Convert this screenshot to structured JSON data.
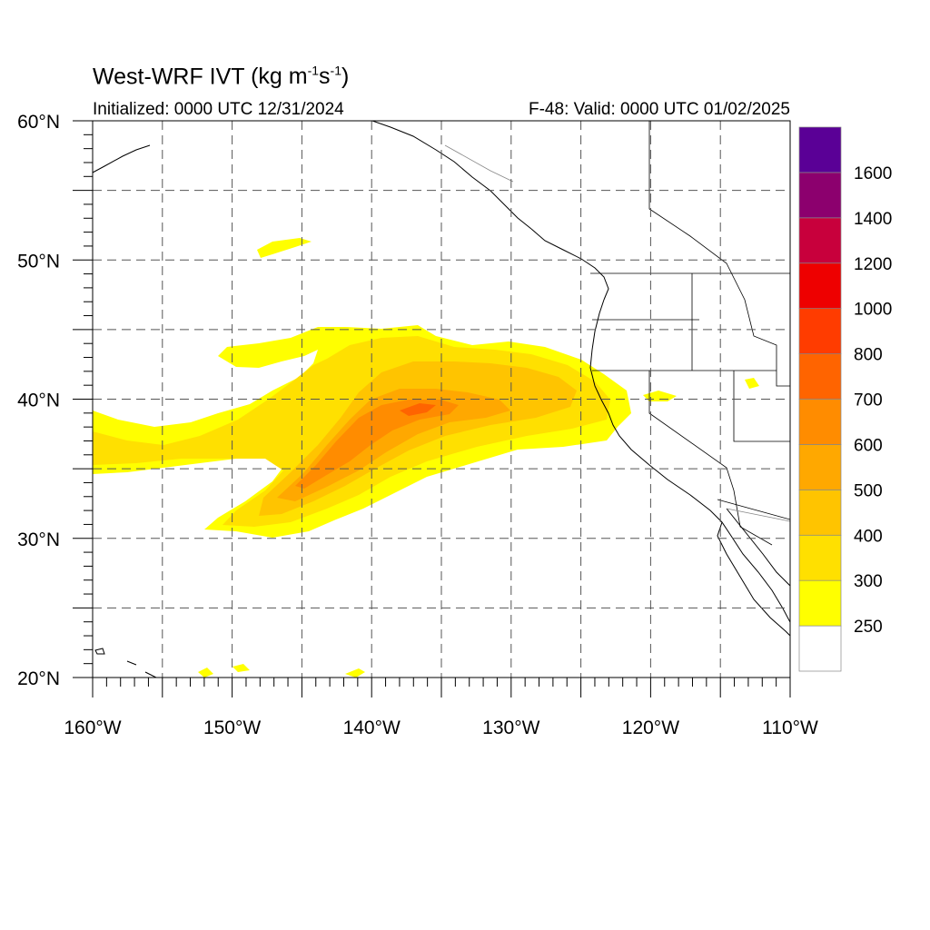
{
  "title": "West-WRF IVT",
  "units": {
    "prefix": "(kg m",
    "exp1": "-1",
    "mid": "s",
    "exp2": "-1",
    "suffix": ")"
  },
  "initialized_label": "Initialized: 0000 UTC 12/31/2024",
  "valid_label": "F-48: Valid: 0000 UTC 01/02/2025",
  "map": {
    "lon_range": [
      -160,
      -110
    ],
    "lat_range": [
      20,
      60
    ],
    "lon_ticks": [
      {
        "value": -160,
        "label": "160°W"
      },
      {
        "value": -150,
        "label": "150°W"
      },
      {
        "value": -140,
        "label": "140°W"
      },
      {
        "value": -130,
        "label": "130°W"
      },
      {
        "value": -120,
        "label": "120°W"
      },
      {
        "value": -110,
        "label": "110°W"
      }
    ],
    "lat_ticks": [
      {
        "value": 60,
        "label": "60°N"
      },
      {
        "value": 50,
        "label": "50°N"
      },
      {
        "value": 40,
        "label": "40°N"
      },
      {
        "value": 30,
        "label": "30°N"
      },
      {
        "value": 20,
        "label": "20°N"
      }
    ],
    "grid_spacing_deg": 5,
    "grid": "dashed"
  },
  "colorbar": {
    "levels": [
      "250",
      "300",
      "400",
      "500",
      "600",
      "700",
      "800",
      "1000",
      "1200",
      "1400",
      "1600"
    ],
    "colors": [
      "#ffffff",
      "#ffff00",
      "#ffe000",
      "#ffc400",
      "#ffa800",
      "#ff8c00",
      "#ff6400",
      "#ff3c00",
      "#ee0000",
      "#c8003c",
      "#8c006e",
      "#5a0096"
    ]
  },
  "features": {
    "atmospheric_river": "IVT plume extending from near 145°W 32°N northeastward toward Northern California coast, maximum 600-700 near 137°W 40°N"
  }
}
